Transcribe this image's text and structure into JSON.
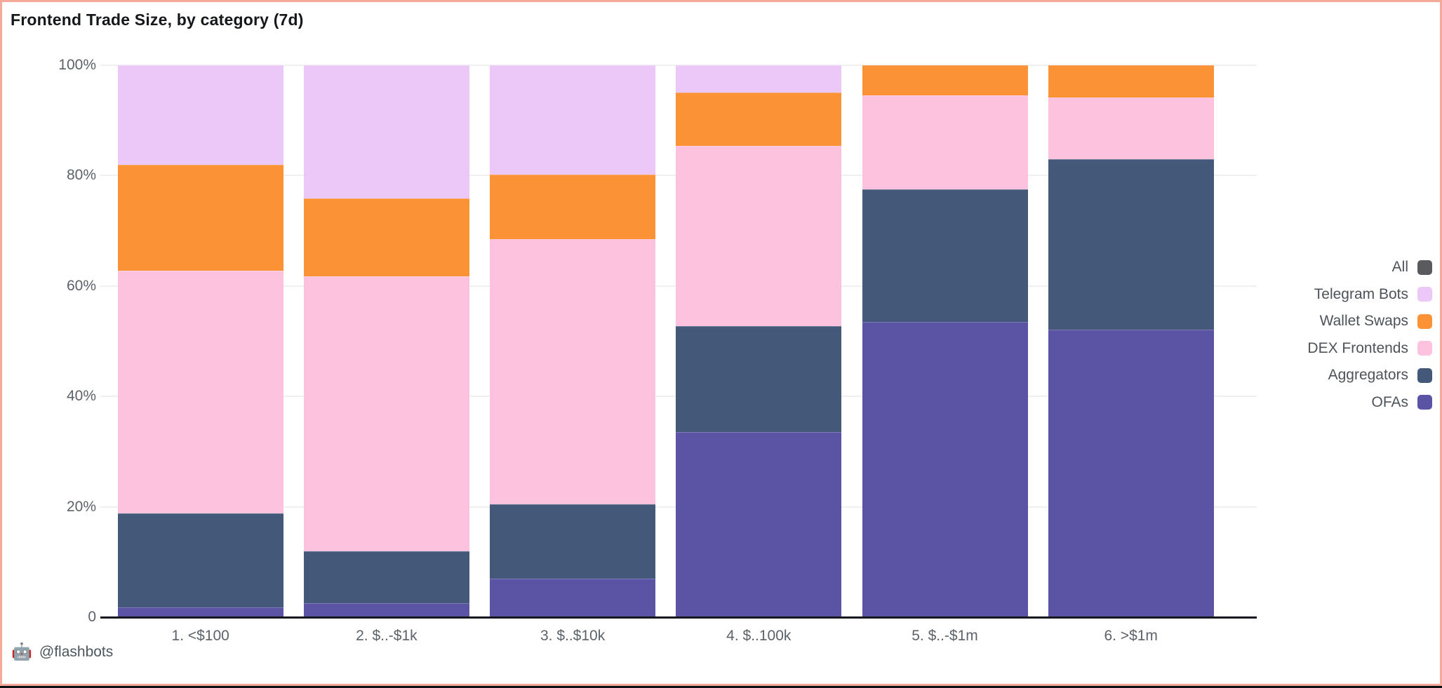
{
  "chart_data": {
    "type": "bar",
    "stacked": true,
    "value_format": "percent",
    "title": "Frontend Trade Size, by category (7d)",
    "categories": [
      "1. <$100",
      "2. $..-$1k",
      "3. $..$10k",
      "4. $..100k",
      "5. $..-$1m",
      "6. >$1m"
    ],
    "series": [
      {
        "name": "OFAs",
        "color": "#5b54a4",
        "values": [
          1.8,
          2.6,
          7.0,
          33.6,
          53.5,
          52.1
        ]
      },
      {
        "name": "Aggregators",
        "color": "#44597a",
        "values": [
          17.0,
          9.4,
          13.4,
          19.1,
          24.0,
          30.9
        ]
      },
      {
        "name": "DEX Frontends",
        "color": "#fdc2de",
        "values": [
          44.0,
          49.7,
          48.1,
          32.7,
          17.0,
          11.2
        ]
      },
      {
        "name": "Wallet Swaps",
        "color": "#fb9236",
        "values": [
          19.2,
          14.1,
          11.7,
          9.6,
          5.5,
          5.8
        ]
      },
      {
        "name": "Telegram Bots",
        "color": "#ebc8f7",
        "values": [
          18.0,
          24.2,
          19.8,
          5.0,
          0,
          0
        ]
      }
    ],
    "stack_order": "first series listed is at the bottom of each bar",
    "yticks": [
      {
        "label": "100%",
        "value": 100
      },
      {
        "label": "80%",
        "value": 80
      },
      {
        "label": "60%",
        "value": 60
      },
      {
        "label": "40%",
        "value": 40
      },
      {
        "label": "20%",
        "value": 20
      },
      {
        "label": "0",
        "value": 0
      }
    ],
    "ylim": [
      0,
      100
    ],
    "grid": "horizontal",
    "legend_position": "right",
    "legend": [
      {
        "label": "All",
        "color": "#595b5e"
      },
      {
        "label": "Telegram Bots",
        "color": "#ebc8f7"
      },
      {
        "label": "Wallet Swaps",
        "color": "#fb9236"
      },
      {
        "label": "DEX Frontends",
        "color": "#fdc2de"
      },
      {
        "label": "Aggregators",
        "color": "#44597a"
      },
      {
        "label": "OFAs",
        "color": "#5b54a4"
      }
    ]
  },
  "footer": {
    "icon_glyph": "🤖",
    "handle": "@flashbots"
  },
  "colors": {
    "background": "#ffffff",
    "card_border": "#f5a99b",
    "window_edge": "#0d0e11",
    "axis_line": "#15181e",
    "gridline": "#f0f0f2",
    "tick_text": "#5c6269",
    "title_text": "#15171a",
    "footer_text": "#4c565e"
  }
}
